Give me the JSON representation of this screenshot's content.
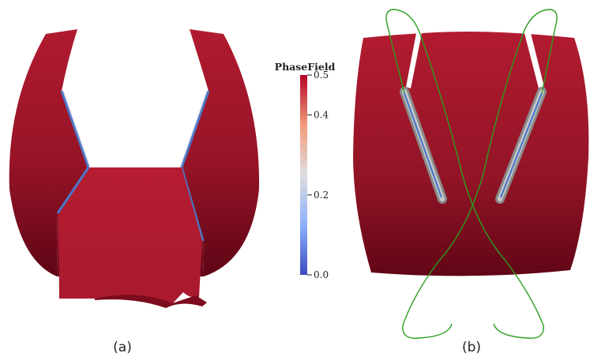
{
  "colorbar": {
    "title": "PhaseField",
    "ticks": [
      {
        "value": 0.5,
        "label": "0.5"
      },
      {
        "value": 0.4,
        "label": "0.4"
      },
      {
        "value": 0.2,
        "label": "0.2"
      },
      {
        "value": 0.0,
        "label": "0.0"
      }
    ],
    "range": [
      0.0,
      0.5
    ],
    "colors": {
      "low": "#3b4cc0",
      "mid": "#dddddd",
      "high": "#b40426"
    }
  },
  "panels": [
    {
      "label": "(a)"
    },
    {
      "label": "(b)"
    }
  ],
  "colors": {
    "surface_light": "#a61a2e",
    "surface_dark": "#6b0618",
    "crack_halo": "#8a8a8a",
    "crack_core": "#4a78c8",
    "curve_green": "#2b9e1f"
  }
}
